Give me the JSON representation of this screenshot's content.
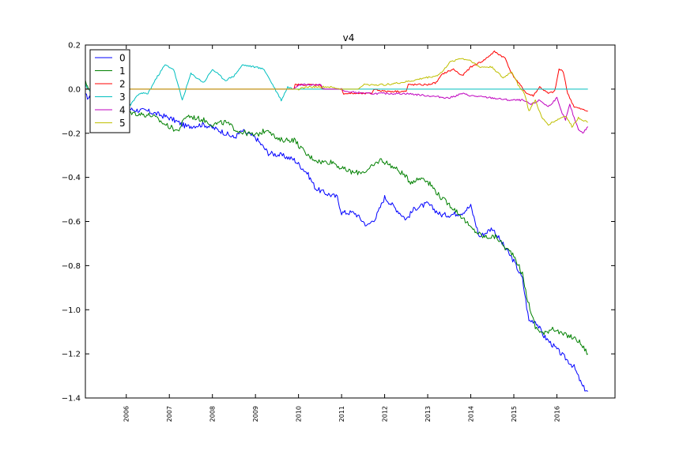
{
  "chart_data": {
    "type": "line",
    "title": "v4",
    "xlabel": "",
    "ylabel": "",
    "xlim": [
      2005.05,
      2017.35
    ],
    "ylim": [
      -1.4,
      0.2
    ],
    "yticks": [
      0.2,
      0.0,
      -0.2,
      -0.4,
      -0.6,
      -0.8,
      -1.0,
      -1.2,
      -1.4
    ],
    "ytick_labels": [
      "0.2",
      "0.0",
      "−0.2",
      "−0.4",
      "−0.6",
      "−0.8",
      "−1.0",
      "−1.2",
      "−1.4"
    ],
    "xticks": [
      2006,
      2007,
      2008,
      2009,
      2010,
      2011,
      2012,
      2013,
      2014,
      2015,
      2016
    ],
    "xtick_labels": [
      "2006",
      "2007",
      "2008",
      "2009",
      "2010",
      "2011",
      "2012",
      "2013",
      "2014",
      "2015",
      "2016"
    ],
    "grid": false,
    "legend_position": "top-left",
    "series": [
      {
        "name": "0",
        "color": "#0000ff",
        "points": [
          [
            2005.05,
            -0.03
          ],
          [
            2005.5,
            -0.08
          ],
          [
            2006.0,
            -0.09
          ],
          [
            2006.5,
            -0.1
          ],
          [
            2007.0,
            -0.13
          ],
          [
            2007.4,
            -0.17
          ],
          [
            2007.8,
            -0.16
          ],
          [
            2008.2,
            -0.19
          ],
          [
            2008.5,
            -0.22
          ],
          [
            2008.7,
            -0.19
          ],
          [
            2009.0,
            -0.22
          ],
          [
            2009.3,
            -0.29
          ],
          [
            2009.6,
            -0.3
          ],
          [
            2009.9,
            -0.32
          ],
          [
            2010.2,
            -0.38
          ],
          [
            2010.4,
            -0.45
          ],
          [
            2010.6,
            -0.47
          ],
          [
            2010.9,
            -0.49
          ],
          [
            2011.0,
            -0.56
          ],
          [
            2011.3,
            -0.56
          ],
          [
            2011.6,
            -0.62
          ],
          [
            2011.8,
            -0.58
          ],
          [
            2012.0,
            -0.49
          ],
          [
            2012.3,
            -0.55
          ],
          [
            2012.5,
            -0.59
          ],
          [
            2012.7,
            -0.54
          ],
          [
            2013.0,
            -0.52
          ],
          [
            2013.3,
            -0.57
          ],
          [
            2013.5,
            -0.57
          ],
          [
            2013.8,
            -0.56
          ],
          [
            2014.0,
            -0.53
          ],
          [
            2014.2,
            -0.67
          ],
          [
            2014.5,
            -0.63
          ],
          [
            2014.8,
            -0.72
          ],
          [
            2015.0,
            -0.78
          ],
          [
            2015.2,
            -0.86
          ],
          [
            2015.35,
            -1.05
          ],
          [
            2015.5,
            -1.05
          ],
          [
            2015.7,
            -1.12
          ],
          [
            2015.9,
            -1.16
          ],
          [
            2016.1,
            -1.2
          ],
          [
            2016.2,
            -1.22
          ],
          [
            2016.4,
            -1.26
          ],
          [
            2016.6,
            -1.35
          ],
          [
            2016.72,
            -1.37
          ]
        ]
      },
      {
        "name": "1",
        "color": "#008000",
        "points": [
          [
            2005.05,
            0.03
          ],
          [
            2005.4,
            -0.07
          ],
          [
            2005.8,
            -0.09
          ],
          [
            2006.2,
            -0.11
          ],
          [
            2006.6,
            -0.12
          ],
          [
            2006.9,
            -0.16
          ],
          [
            2007.2,
            -0.19
          ],
          [
            2007.4,
            -0.12
          ],
          [
            2007.8,
            -0.14
          ],
          [
            2008.0,
            -0.16
          ],
          [
            2008.3,
            -0.15
          ],
          [
            2008.6,
            -0.19
          ],
          [
            2009.0,
            -0.21
          ],
          [
            2009.3,
            -0.18
          ],
          [
            2009.5,
            -0.23
          ],
          [
            2009.9,
            -0.23
          ],
          [
            2010.2,
            -0.3
          ],
          [
            2010.5,
            -0.33
          ],
          [
            2010.8,
            -0.33
          ],
          [
            2011.0,
            -0.36
          ],
          [
            2011.3,
            -0.38
          ],
          [
            2011.6,
            -0.37
          ],
          [
            2011.9,
            -0.32
          ],
          [
            2012.1,
            -0.34
          ],
          [
            2012.4,
            -0.38
          ],
          [
            2012.6,
            -0.42
          ],
          [
            2012.9,
            -0.4
          ],
          [
            2013.1,
            -0.44
          ],
          [
            2013.3,
            -0.49
          ],
          [
            2013.6,
            -0.54
          ],
          [
            2013.8,
            -0.58
          ],
          [
            2014.0,
            -0.63
          ],
          [
            2014.3,
            -0.67
          ],
          [
            2014.6,
            -0.67
          ],
          [
            2014.8,
            -0.72
          ],
          [
            2015.0,
            -0.75
          ],
          [
            2015.2,
            -0.84
          ],
          [
            2015.3,
            -0.94
          ],
          [
            2015.5,
            -1.08
          ],
          [
            2015.7,
            -1.11
          ],
          [
            2015.9,
            -1.08
          ],
          [
            2016.1,
            -1.11
          ],
          [
            2016.3,
            -1.12
          ],
          [
            2016.5,
            -1.14
          ],
          [
            2016.72,
            -1.2
          ]
        ]
      },
      {
        "name": "2",
        "color": "#ff0000",
        "points": [
          [
            2005.05,
            0.0
          ],
          [
            2009.9,
            0.0
          ],
          [
            2009.92,
            0.02
          ],
          [
            2010.5,
            0.02
          ],
          [
            2010.55,
            0.0
          ],
          [
            2011.0,
            0.0
          ],
          [
            2011.05,
            -0.02
          ],
          [
            2011.7,
            -0.02
          ],
          [
            2011.75,
            0.0
          ],
          [
            2012.0,
            -0.01
          ],
          [
            2012.5,
            -0.01
          ],
          [
            2012.55,
            0.02
          ],
          [
            2013.0,
            0.02
          ],
          [
            2013.2,
            0.03
          ],
          [
            2013.35,
            0.07
          ],
          [
            2013.6,
            0.09
          ],
          [
            2013.8,
            0.06
          ],
          [
            2014.0,
            0.1
          ],
          [
            2014.3,
            0.13
          ],
          [
            2014.55,
            0.17
          ],
          [
            2014.8,
            0.14
          ],
          [
            2014.95,
            0.07
          ],
          [
            2015.1,
            0.03
          ],
          [
            2015.3,
            -0.02
          ],
          [
            2015.45,
            -0.03
          ],
          [
            2015.6,
            0.01
          ],
          [
            2015.8,
            -0.02
          ],
          [
            2015.95,
            -0.01
          ],
          [
            2016.05,
            0.09
          ],
          [
            2016.15,
            0.08
          ],
          [
            2016.25,
            -0.02
          ],
          [
            2016.4,
            -0.08
          ],
          [
            2016.55,
            -0.09
          ],
          [
            2016.72,
            -0.1
          ]
        ]
      },
      {
        "name": "3",
        "color": "#00bfbf",
        "points": [
          [
            2005.05,
            0.02
          ],
          [
            2005.3,
            -0.05
          ],
          [
            2005.6,
            -0.08
          ],
          [
            2005.9,
            -0.04
          ],
          [
            2006.1,
            -0.07
          ],
          [
            2006.3,
            -0.02
          ],
          [
            2006.5,
            -0.02
          ],
          [
            2006.7,
            0.05
          ],
          [
            2006.9,
            0.11
          ],
          [
            2007.1,
            0.09
          ],
          [
            2007.3,
            -0.05
          ],
          [
            2007.5,
            0.07
          ],
          [
            2007.8,
            0.03
          ],
          [
            2008.0,
            0.09
          ],
          [
            2008.3,
            0.04
          ],
          [
            2008.5,
            0.06
          ],
          [
            2008.7,
            0.11
          ],
          [
            2009.0,
            0.1
          ],
          [
            2009.2,
            0.09
          ],
          [
            2009.4,
            0.02
          ],
          [
            2009.6,
            -0.05
          ],
          [
            2009.75,
            0.01
          ],
          [
            2009.9,
            0.0
          ],
          [
            2009.95,
            0.0
          ],
          [
            2016.72,
            0.0
          ]
        ]
      },
      {
        "name": "4",
        "color": "#bf00bf",
        "points": [
          [
            2005.05,
            0.0
          ],
          [
            2009.9,
            0.0
          ],
          [
            2010.0,
            0.02
          ],
          [
            2010.5,
            0.02
          ],
          [
            2010.6,
            0.0
          ],
          [
            2011.0,
            0.0
          ],
          [
            2011.05,
            -0.01
          ],
          [
            2011.6,
            -0.02
          ],
          [
            2012.0,
            -0.02
          ],
          [
            2012.5,
            -0.02
          ],
          [
            2013.0,
            -0.03
          ],
          [
            2013.5,
            -0.04
          ],
          [
            2013.8,
            -0.02
          ],
          [
            2014.0,
            -0.03
          ],
          [
            2014.5,
            -0.04
          ],
          [
            2014.9,
            -0.05
          ],
          [
            2015.2,
            -0.05
          ],
          [
            2015.4,
            -0.07
          ],
          [
            2015.6,
            -0.05
          ],
          [
            2015.8,
            -0.08
          ],
          [
            2016.0,
            -0.04
          ],
          [
            2016.1,
            -0.1
          ],
          [
            2016.2,
            -0.14
          ],
          [
            2016.3,
            -0.07
          ],
          [
            2016.4,
            -0.13
          ],
          [
            2016.5,
            -0.18
          ],
          [
            2016.6,
            -0.2
          ],
          [
            2016.72,
            -0.17
          ]
        ]
      },
      {
        "name": "5",
        "color": "#bfbf00",
        "points": [
          [
            2005.05,
            0.0
          ],
          [
            2010.0,
            0.0
          ],
          [
            2010.2,
            0.01
          ],
          [
            2010.7,
            0.01
          ],
          [
            2011.0,
            0.0
          ],
          [
            2011.4,
            0.0
          ],
          [
            2011.5,
            0.02
          ],
          [
            2012.0,
            0.02
          ],
          [
            2012.4,
            0.03
          ],
          [
            2012.7,
            0.04
          ],
          [
            2012.9,
            0.05
          ],
          [
            2013.2,
            0.06
          ],
          [
            2013.35,
            0.08
          ],
          [
            2013.5,
            0.12
          ],
          [
            2013.75,
            0.14
          ],
          [
            2014.0,
            0.13
          ],
          [
            2014.2,
            0.1
          ],
          [
            2014.5,
            0.1
          ],
          [
            2014.75,
            0.05
          ],
          [
            2014.95,
            0.08
          ],
          [
            2015.1,
            0.02
          ],
          [
            2015.25,
            -0.02
          ],
          [
            2015.35,
            -0.1
          ],
          [
            2015.5,
            -0.05
          ],
          [
            2015.65,
            -0.13
          ],
          [
            2015.8,
            -0.16
          ],
          [
            2016.0,
            -0.14
          ],
          [
            2016.2,
            -0.12
          ],
          [
            2016.35,
            -0.17
          ],
          [
            2016.5,
            -0.13
          ],
          [
            2016.72,
            -0.15
          ]
        ]
      }
    ]
  }
}
